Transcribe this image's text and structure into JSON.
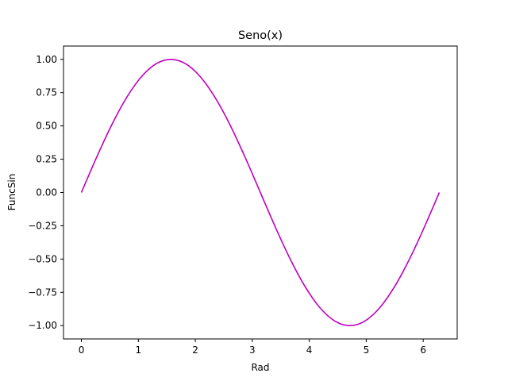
{
  "chart_data": {
    "type": "line",
    "title": "Seno(x)",
    "xlabel": "Rad",
    "ylabel": "FuncSin",
    "xlim": [
      -0.314,
      6.597
    ],
    "ylim": [
      -1.1,
      1.1
    ],
    "xticks": [
      0,
      1,
      2,
      3,
      4,
      5,
      6
    ],
    "xtick_labels": [
      "0",
      "1",
      "2",
      "3",
      "4",
      "5",
      "6"
    ],
    "yticks": [
      -1.0,
      -0.75,
      -0.5,
      -0.25,
      0.0,
      0.25,
      0.5,
      0.75,
      1.0
    ],
    "ytick_labels": [
      "−1.00",
      "−0.75",
      "−0.50",
      "−0.25",
      "0.00",
      "0.25",
      "0.50",
      "0.75",
      "1.00"
    ],
    "grid": false,
    "series": [
      {
        "color": "#bf00bf",
        "x": [
          0,
          0.2618,
          0.5236,
          0.7854,
          1.0472,
          1.309,
          1.5708,
          1.8326,
          2.0944,
          2.3562,
          2.618,
          2.8798,
          3.1416,
          3.4034,
          3.6652,
          3.927,
          4.1888,
          4.4506,
          4.7124,
          4.9742,
          5.236,
          5.4978,
          5.7596,
          6.0214,
          6.2832
        ],
        "y": [
          0,
          0.2588,
          0.5,
          0.7071,
          0.866,
          0.9659,
          1.0,
          0.9659,
          0.866,
          0.7071,
          0.5,
          0.2588,
          0,
          -0.2588,
          -0.5,
          -0.7071,
          -0.866,
          -0.9659,
          -1.0,
          -0.9659,
          -0.866,
          -0.7071,
          -0.5,
          -0.2588,
          0
        ]
      }
    ]
  }
}
